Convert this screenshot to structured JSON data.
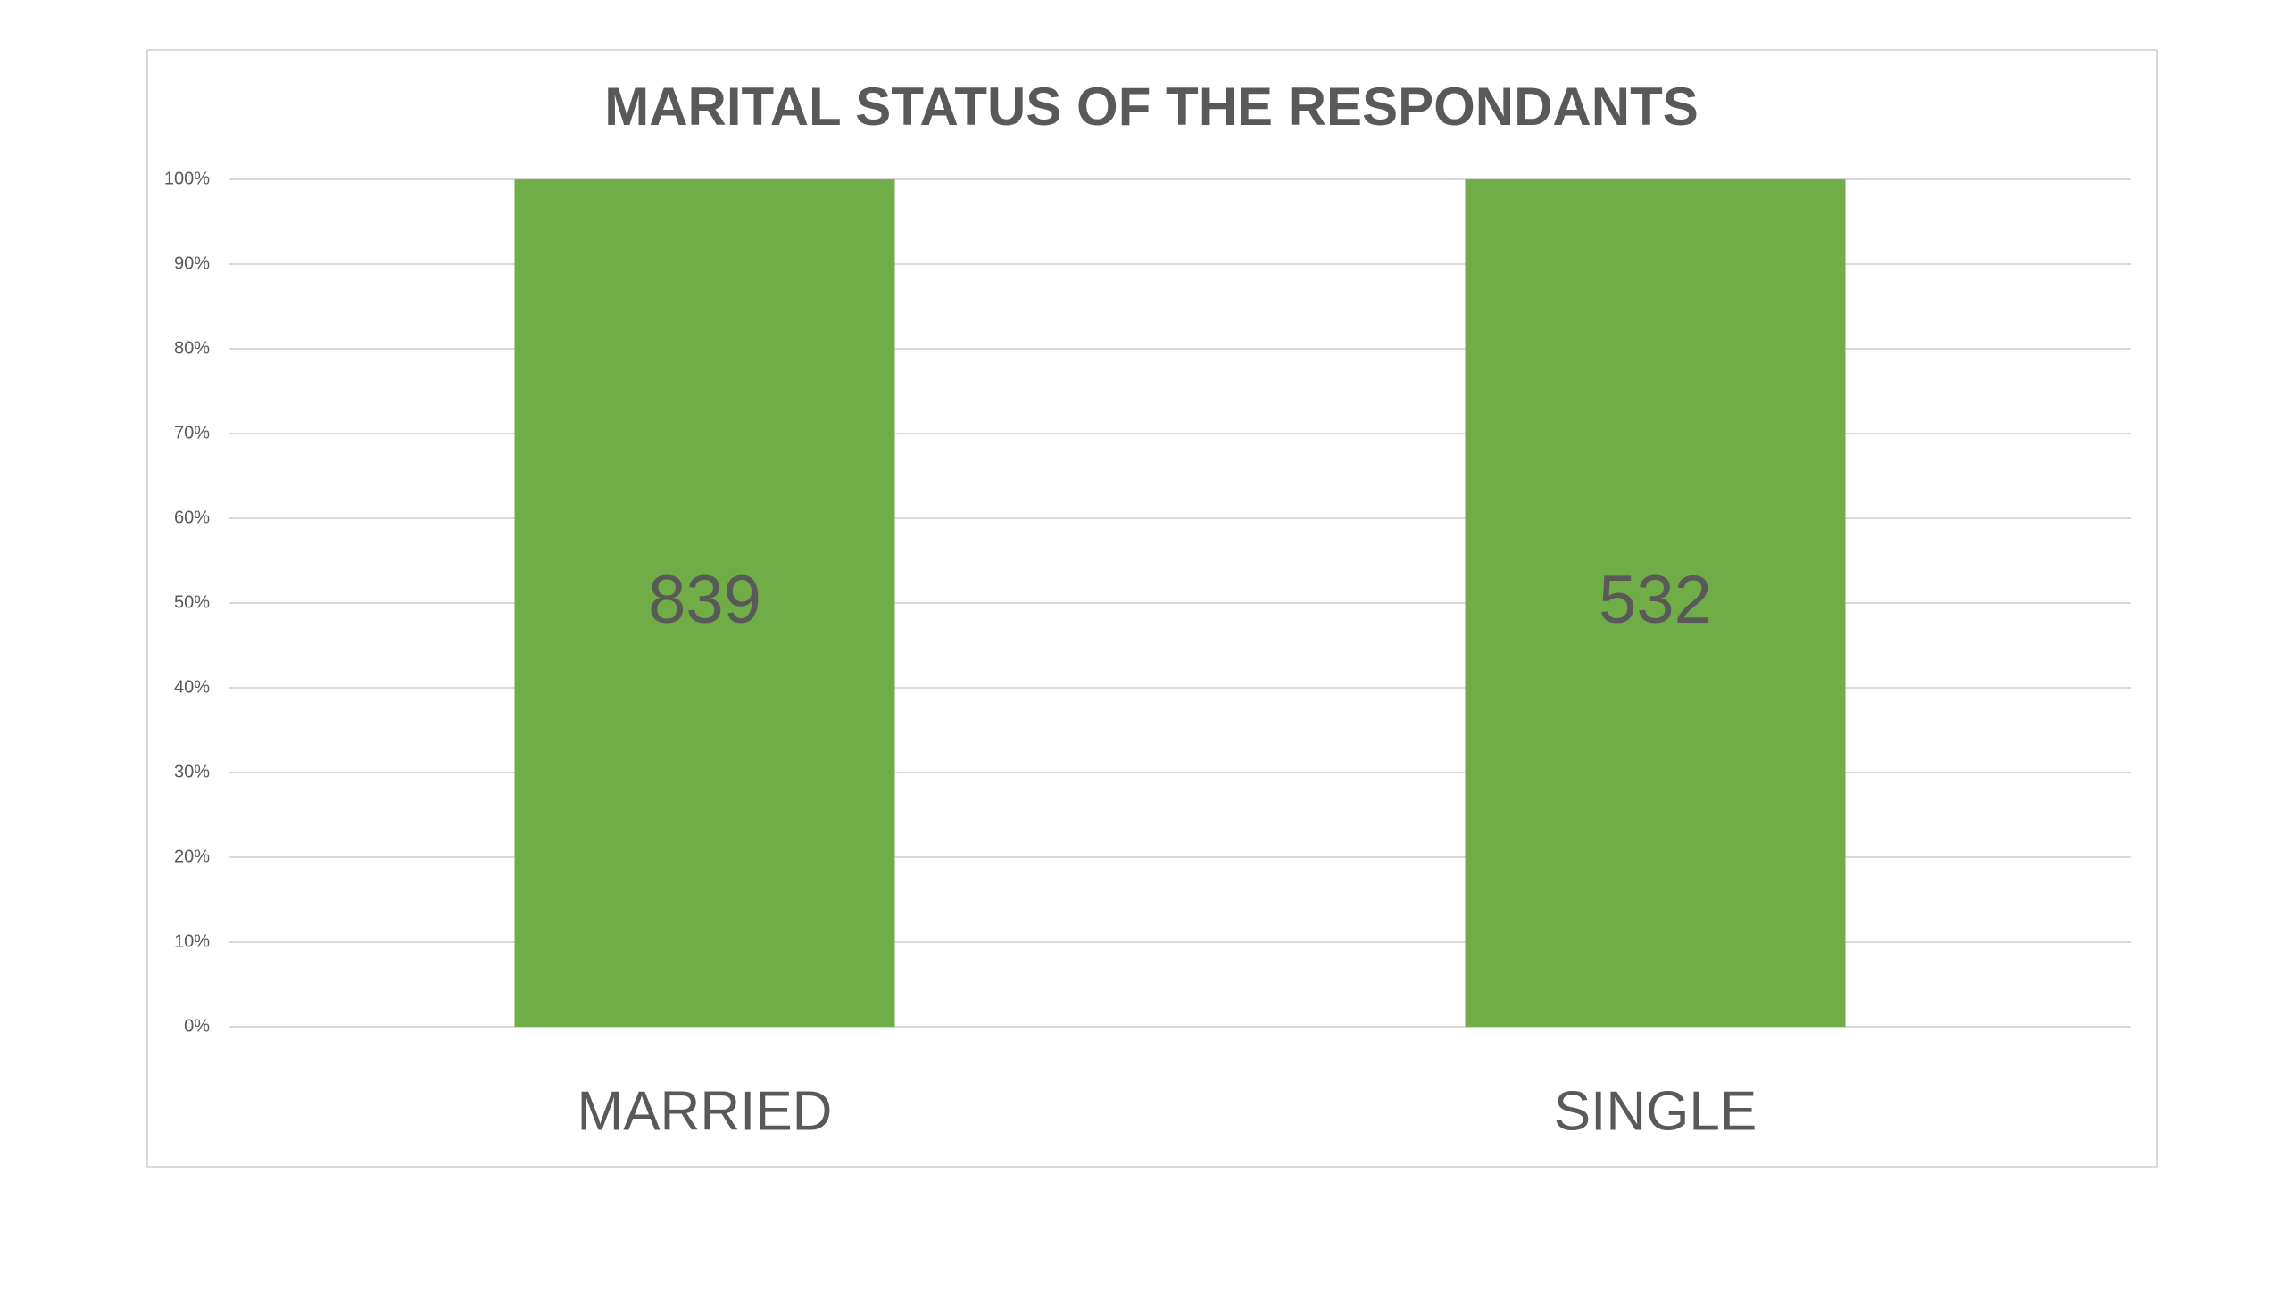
{
  "chart_data": {
    "type": "bar",
    "stack": "percent",
    "title": "MARITAL STATUS OF THE RESPONDANTS",
    "categories": [
      "MARRIED",
      "SINGLE"
    ],
    "values": [
      839,
      532
    ],
    "color": "#70ad47",
    "ylim": [
      0,
      100
    ],
    "yticks": [
      {
        "value": 0,
        "label": "0%"
      },
      {
        "value": 10,
        "label": "10%"
      },
      {
        "value": 20,
        "label": "20%"
      },
      {
        "value": 30,
        "label": "30%"
      },
      {
        "value": 40,
        "label": "40%"
      },
      {
        "value": 50,
        "label": "50%"
      },
      {
        "value": 60,
        "label": "60%"
      },
      {
        "value": 70,
        "label": "70%"
      },
      {
        "value": 80,
        "label": "80%"
      },
      {
        "value": 90,
        "label": "90%"
      },
      {
        "value": 100,
        "label": "100%"
      }
    ],
    "grid": true
  }
}
